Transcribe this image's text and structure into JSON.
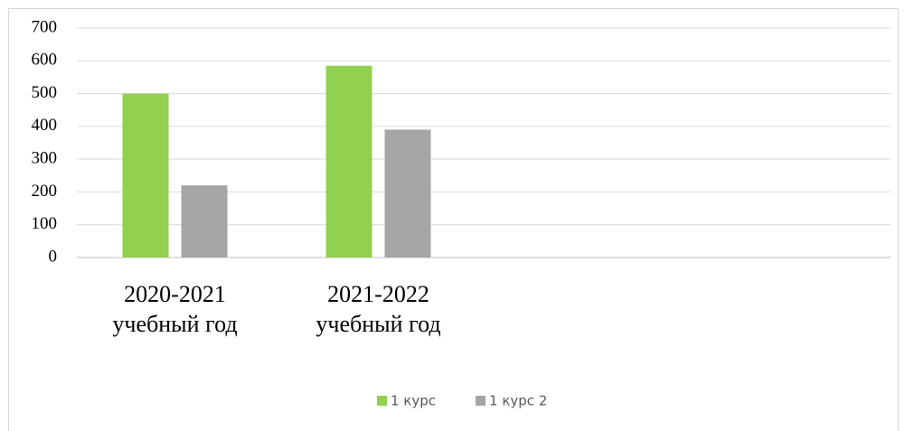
{
  "chart_data": {
    "type": "bar",
    "categories": [
      "2020-2021 учебный год",
      "2021-2022 учебный год",
      null,
      null
    ],
    "series": [
      {
        "name": "1 курс",
        "color": "#92d050",
        "values": [
          500,
          585,
          null,
          null
        ]
      },
      {
        "name": "1 курс 2",
        "color": "#a5a5a5",
        "values": [
          220,
          390,
          null,
          null
        ]
      }
    ],
    "ylim": [
      0,
      700
    ],
    "yticks": [
      0,
      100,
      200,
      300,
      400,
      500,
      600,
      700
    ],
    "grid": true,
    "legend": "bottom"
  }
}
